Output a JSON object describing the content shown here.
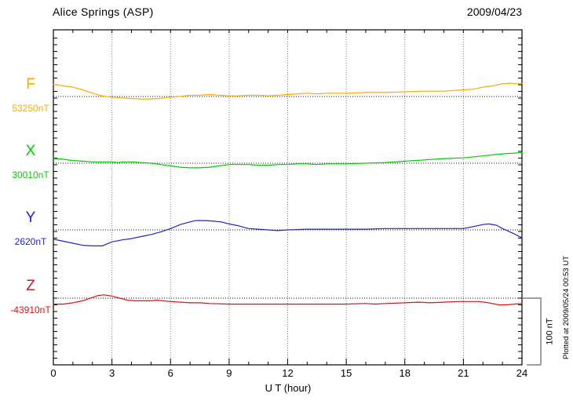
{
  "chart_data": {
    "type": "line",
    "title": "Alice Springs (ASP)",
    "date": "2009/04/23",
    "xlabel": "U T (hour)",
    "units": "nT",
    "xlim": [
      0,
      24
    ],
    "x_major_ticks": [
      0,
      3,
      6,
      9,
      12,
      15,
      18,
      21,
      24
    ],
    "x_minor_step_hours": 1,
    "grid": "vertical-dotted-every-3h-plus-dotted-baseline-per-series",
    "legend_position": "left-of-each-trace-baseline",
    "scale_bar": {
      "label": "100 nT",
      "span_nT": 100
    },
    "plotted_at": "Plotted at 2009/05/24 00:53 UT",
    "series": [
      {
        "name": "F",
        "baseline_label": "53250nT",
        "baseline_nT": 53250,
        "color": "#FFAA00",
        "points": [
          [
            0,
            53268
          ],
          [
            0.5,
            53266
          ],
          [
            1,
            53264
          ],
          [
            1.5,
            53260
          ],
          [
            2,
            53255
          ],
          [
            2.5,
            53251
          ],
          [
            3,
            53249
          ],
          [
            3.5,
            53248
          ],
          [
            4,
            53247
          ],
          [
            4.7,
            53246
          ],
          [
            5.4,
            53247
          ],
          [
            6,
            53249
          ],
          [
            6.5,
            53250
          ],
          [
            7,
            53252
          ],
          [
            7.5,
            53252
          ],
          [
            8,
            53253
          ],
          [
            8.5,
            53252
          ],
          [
            9,
            53251
          ],
          [
            9.5,
            53251
          ],
          [
            10,
            53252
          ],
          [
            10.5,
            53252
          ],
          [
            11,
            53251
          ],
          [
            11.5,
            53252
          ],
          [
            12,
            53253
          ],
          [
            12.5,
            53254
          ],
          [
            13,
            53255
          ],
          [
            13.5,
            53254
          ],
          [
            14,
            53255
          ],
          [
            15,
            53255
          ],
          [
            16,
            53256
          ],
          [
            17,
            53256
          ],
          [
            18,
            53257
          ],
          [
            19,
            53258
          ],
          [
            20,
            53258
          ],
          [
            21,
            53260
          ],
          [
            21.5,
            53261
          ],
          [
            22,
            53264
          ],
          [
            22.5,
            53266
          ],
          [
            23,
            53269
          ],
          [
            23.4,
            53270
          ],
          [
            23.7,
            53269
          ],
          [
            24,
            53269
          ]
        ]
      },
      {
        "name": "X",
        "baseline_label": "30010nT",
        "baseline_nT": 30010,
        "color": "#00CC00",
        "points": [
          [
            0,
            30017
          ],
          [
            0.5,
            30016
          ],
          [
            1,
            30014
          ],
          [
            1.5,
            30013
          ],
          [
            2,
            30012
          ],
          [
            2.5,
            30012
          ],
          [
            3,
            30012
          ],
          [
            3.3,
            30011
          ],
          [
            3.6,
            30012
          ],
          [
            4,
            30012
          ],
          [
            4.5,
            30011
          ],
          [
            5,
            30010
          ],
          [
            5.5,
            30008
          ],
          [
            6,
            30006
          ],
          [
            6.5,
            30004
          ],
          [
            7,
            30003
          ],
          [
            7.5,
            30003
          ],
          [
            8,
            30004
          ],
          [
            8.5,
            30006
          ],
          [
            9,
            30008
          ],
          [
            9.5,
            30008
          ],
          [
            10,
            30008
          ],
          [
            10.5,
            30007
          ],
          [
            11,
            30007
          ],
          [
            11.5,
            30008
          ],
          [
            12,
            30008
          ],
          [
            12.5,
            30009
          ],
          [
            13,
            30009
          ],
          [
            13.5,
            30008
          ],
          [
            14,
            30009
          ],
          [
            15,
            30009
          ],
          [
            16,
            30010
          ],
          [
            17,
            30011
          ],
          [
            18,
            30013
          ],
          [
            19,
            30015
          ],
          [
            20,
            30017
          ],
          [
            21,
            30018
          ],
          [
            22,
            30021
          ],
          [
            23,
            30024
          ],
          [
            23.5,
            30025
          ],
          [
            24,
            30026
          ]
        ]
      },
      {
        "name": "Y",
        "baseline_label": "2620nT",
        "baseline_nT": 2620,
        "color": "#2222CC",
        "points": [
          [
            0,
            2606
          ],
          [
            0.5,
            2603
          ],
          [
            1,
            2600
          ],
          [
            1.5,
            2597
          ],
          [
            2,
            2596
          ],
          [
            2.5,
            2596
          ],
          [
            3,
            2602
          ],
          [
            3.5,
            2605
          ],
          [
            4,
            2607
          ],
          [
            4.5,
            2610
          ],
          [
            5,
            2613
          ],
          [
            5.5,
            2617
          ],
          [
            6,
            2622
          ],
          [
            6.5,
            2628
          ],
          [
            7,
            2632
          ],
          [
            7.3,
            2634
          ],
          [
            7.8,
            2634
          ],
          [
            8.2,
            2633
          ],
          [
            8.6,
            2632
          ],
          [
            9,
            2629
          ],
          [
            9.5,
            2626
          ],
          [
            10,
            2622
          ],
          [
            10.5,
            2621
          ],
          [
            11,
            2620
          ],
          [
            11.5,
            2619
          ],
          [
            12,
            2620
          ],
          [
            13,
            2621
          ],
          [
            14,
            2621
          ],
          [
            15,
            2621
          ],
          [
            16,
            2621
          ],
          [
            17,
            2622
          ],
          [
            18,
            2622
          ],
          [
            19,
            2622
          ],
          [
            20,
            2622
          ],
          [
            21,
            2622
          ],
          [
            21.5,
            2625
          ],
          [
            22,
            2628
          ],
          [
            22.3,
            2629
          ],
          [
            22.7,
            2627
          ],
          [
            23,
            2622
          ],
          [
            23.3,
            2618
          ],
          [
            23.6,
            2614
          ],
          [
            24,
            2608
          ]
        ]
      },
      {
        "name": "Z",
        "baseline_label": "-43910nT",
        "baseline_nT": -43910,
        "color": "#DD1111",
        "points": [
          [
            0,
            -43919
          ],
          [
            0.5,
            -43919
          ],
          [
            1,
            -43917
          ],
          [
            1.5,
            -43914
          ],
          [
            2,
            -43909
          ],
          [
            2.3,
            -43906
          ],
          [
            2.6,
            -43905
          ],
          [
            3,
            -43907
          ],
          [
            3.4,
            -43910
          ],
          [
            3.8,
            -43913
          ],
          [
            4.2,
            -43914
          ],
          [
            5,
            -43914
          ],
          [
            5.3,
            -43913
          ],
          [
            5.6,
            -43914
          ],
          [
            6,
            -43915
          ],
          [
            6.5,
            -43916
          ],
          [
            7,
            -43917
          ],
          [
            7.5,
            -43917
          ],
          [
            8,
            -43918
          ],
          [
            9,
            -43919
          ],
          [
            10,
            -43919
          ],
          [
            11,
            -43919
          ],
          [
            12,
            -43919
          ],
          [
            13,
            -43919
          ],
          [
            14,
            -43919
          ],
          [
            15,
            -43919
          ],
          [
            16,
            -43918
          ],
          [
            16.5,
            -43919
          ],
          [
            17,
            -43918
          ],
          [
            18,
            -43917
          ],
          [
            18.7,
            -43916
          ],
          [
            19.3,
            -43917
          ],
          [
            20,
            -43916
          ],
          [
            20.7,
            -43915
          ],
          [
            21.3,
            -43915
          ],
          [
            21.8,
            -43915
          ],
          [
            22.3,
            -43917
          ],
          [
            22.8,
            -43920
          ],
          [
            23.2,
            -43920
          ],
          [
            23.6,
            -43919
          ],
          [
            24,
            -43918
          ]
        ]
      }
    ]
  }
}
